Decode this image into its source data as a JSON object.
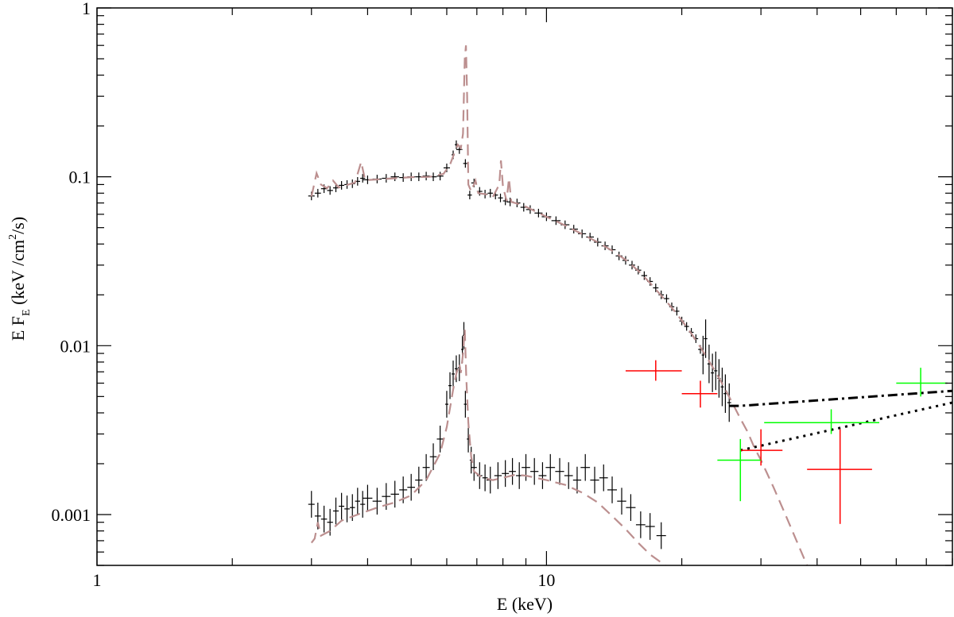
{
  "chart_data": {
    "type": "scatter",
    "xlabel": "E (keV)",
    "ylabel": {
      "pre": "E F",
      "sub": "E",
      "mid": " (keV /cm",
      "sup": "2",
      "post": "/s)"
    },
    "x_scale": "log",
    "y_scale": "log",
    "xlim": [
      1,
      80
    ],
    "ylim": [
      0.0005,
      1
    ],
    "x_ticks": [
      {
        "value": 1,
        "label": "1"
      },
      {
        "value": 10,
        "label": "10"
      }
    ],
    "y_ticks": [
      {
        "value": 0.001,
        "label": "0.001"
      },
      {
        "value": 0.01,
        "label": "0.01"
      },
      {
        "value": 0.1,
        "label": "0.1"
      },
      {
        "value": 1,
        "label": "1"
      }
    ],
    "colors": {
      "data": "#000000",
      "model": "#bc8f8f",
      "red_points": "#ff0000",
      "green_points": "#00ff00",
      "frame": "#000000"
    },
    "series": [
      {
        "kind": "data_upper",
        "points": [
          [
            3.0,
            0.077
          ],
          [
            3.1,
            0.08
          ],
          [
            3.2,
            0.085
          ],
          [
            3.3,
            0.083
          ],
          [
            3.4,
            0.086
          ],
          [
            3.5,
            0.089
          ],
          [
            3.6,
            0.09
          ],
          [
            3.7,
            0.091
          ],
          [
            3.8,
            0.094
          ],
          [
            3.9,
            0.098
          ],
          [
            4.0,
            0.096
          ],
          [
            4.2,
            0.097
          ],
          [
            4.4,
            0.098
          ],
          [
            4.6,
            0.1
          ],
          [
            4.8,
            0.099
          ],
          [
            5.0,
            0.1
          ],
          [
            5.2,
            0.1
          ],
          [
            5.4,
            0.101
          ],
          [
            5.6,
            0.1
          ],
          [
            5.8,
            0.101
          ],
          [
            6.0,
            0.113
          ],
          [
            6.2,
            0.135
          ],
          [
            6.3,
            0.155
          ],
          [
            6.4,
            0.145
          ],
          [
            6.6,
            0.12
          ],
          [
            6.75,
            0.078
          ],
          [
            6.9,
            0.092
          ],
          [
            7.1,
            0.082
          ],
          [
            7.3,
            0.079
          ],
          [
            7.5,
            0.08
          ],
          [
            7.7,
            0.078
          ],
          [
            7.9,
            0.075
          ],
          [
            8.1,
            0.072
          ],
          [
            8.3,
            0.071
          ],
          [
            8.6,
            0.07
          ],
          [
            8.9,
            0.066
          ],
          [
            9.2,
            0.064
          ],
          [
            9.6,
            0.061
          ],
          [
            10.0,
            0.058
          ],
          [
            10.5,
            0.055
          ],
          [
            11.0,
            0.052
          ],
          [
            11.5,
            0.049
          ],
          [
            12.0,
            0.046
          ],
          [
            12.5,
            0.044
          ],
          [
            13.0,
            0.041
          ],
          [
            13.5,
            0.039
          ],
          [
            14.0,
            0.037
          ],
          [
            14.5,
            0.034
          ],
          [
            15.0,
            0.032
          ],
          [
            15.5,
            0.03
          ],
          [
            16.0,
            0.028
          ],
          [
            16.5,
            0.026
          ],
          [
            17.0,
            0.024
          ],
          [
            17.5,
            0.022
          ],
          [
            18.0,
            0.02
          ],
          [
            18.5,
            0.019
          ],
          [
            19.0,
            0.017
          ],
          [
            19.5,
            0.016
          ],
          [
            20.0,
            0.014
          ],
          [
            20.5,
            0.013
          ],
          [
            21.0,
            0.012
          ],
          [
            21.5,
            0.011
          ],
          [
            22.0,
            0.0095
          ]
        ],
        "error_factor": 1.06
      },
      {
        "kind": "data_upper_tail",
        "points": [
          [
            22.3,
            0.0088
          ],
          [
            22.6,
            0.011
          ],
          [
            23.0,
            0.0078
          ],
          [
            23.4,
            0.0069
          ],
          [
            23.8,
            0.0071
          ],
          [
            24.2,
            0.0064
          ],
          [
            24.6,
            0.0057
          ],
          [
            25.0,
            0.0052
          ],
          [
            25.5,
            0.0046
          ]
        ],
        "error_factor": 1.3
      },
      {
        "kind": "data_lower",
        "points": [
          [
            3.0,
            0.00115
          ],
          [
            3.1,
            0.00098
          ],
          [
            3.2,
            0.00094
          ],
          [
            3.3,
            0.0009
          ],
          [
            3.4,
            0.00105
          ],
          [
            3.5,
            0.00112
          ],
          [
            3.6,
            0.00108
          ],
          [
            3.7,
            0.0011
          ],
          [
            3.8,
            0.0012
          ],
          [
            3.9,
            0.00115
          ],
          [
            4.0,
            0.00125
          ],
          [
            4.2,
            0.0012
          ],
          [
            4.4,
            0.00128
          ],
          [
            4.6,
            0.00132
          ],
          [
            4.8,
            0.0014
          ],
          [
            5.0,
            0.00145
          ],
          [
            5.2,
            0.0016
          ],
          [
            5.4,
            0.0019
          ],
          [
            5.6,
            0.0022
          ],
          [
            5.8,
            0.0028
          ],
          [
            6.0,
            0.0045
          ],
          [
            6.1,
            0.0058
          ],
          [
            6.2,
            0.0068
          ],
          [
            6.3,
            0.0073
          ],
          [
            6.4,
            0.0074
          ],
          [
            6.5,
            0.0095
          ],
          [
            6.55,
            0.0115
          ],
          [
            6.6,
            0.0045
          ],
          [
            6.7,
            0.0028
          ],
          [
            6.8,
            0.0021
          ],
          [
            6.9,
            0.0019
          ],
          [
            7.1,
            0.0017
          ],
          [
            7.3,
            0.00165
          ],
          [
            7.5,
            0.0016
          ],
          [
            7.8,
            0.0017
          ],
          [
            8.1,
            0.00175
          ],
          [
            8.4,
            0.0018
          ],
          [
            8.7,
            0.0017
          ],
          [
            9.0,
            0.0019
          ],
          [
            9.4,
            0.0018
          ],
          [
            9.8,
            0.0017
          ],
          [
            10.2,
            0.0019
          ],
          [
            10.7,
            0.0018
          ],
          [
            11.2,
            0.0017
          ],
          [
            11.7,
            0.0016
          ],
          [
            12.2,
            0.0019
          ],
          [
            12.8,
            0.0016
          ],
          [
            13.4,
            0.00165
          ],
          [
            14.0,
            0.0014
          ],
          [
            14.7,
            0.0012
          ],
          [
            15.4,
            0.0011
          ],
          [
            16.2,
            0.00087
          ],
          [
            17.0,
            0.00085
          ],
          [
            18.0,
            0.00075
          ]
        ],
        "error_factor": 1.2
      },
      {
        "kind": "model_upper",
        "points": [
          [
            3.0,
            0.0765
          ],
          [
            3.08,
            0.105
          ],
          [
            3.15,
            0.09
          ],
          [
            3.25,
            0.0855
          ],
          [
            3.35,
            0.095
          ],
          [
            3.45,
            0.0865
          ],
          [
            3.6,
            0.0895
          ],
          [
            3.75,
            0.0925
          ],
          [
            3.87,
            0.1225
          ],
          [
            3.95,
            0.0955
          ],
          [
            4.2,
            0.0965
          ],
          [
            4.6,
            0.098
          ],
          [
            5.0,
            0.0995
          ],
          [
            5.5,
            0.1
          ],
          [
            5.9,
            0.104
          ],
          [
            6.1,
            0.118
          ],
          [
            6.25,
            0.14
          ],
          [
            6.35,
            0.155
          ],
          [
            6.45,
            0.148
          ],
          [
            6.52,
            0.18
          ],
          [
            6.58,
            0.5
          ],
          [
            6.62,
            0.6
          ],
          [
            6.66,
            0.3
          ],
          [
            6.7,
            0.09
          ],
          [
            6.8,
            0.082
          ],
          [
            6.95,
            0.095
          ],
          [
            7.05,
            0.08
          ],
          [
            7.3,
            0.079
          ],
          [
            7.6,
            0.076
          ],
          [
            7.85,
            0.09
          ],
          [
            7.92,
            0.125
          ],
          [
            8.0,
            0.088
          ],
          [
            8.15,
            0.072
          ],
          [
            8.25,
            0.098
          ],
          [
            8.35,
            0.071
          ],
          [
            8.6,
            0.0695
          ],
          [
            9.0,
            0.0665
          ],
          [
            10.0,
            0.058
          ],
          [
            11.0,
            0.0515
          ],
          [
            12.0,
            0.0458
          ],
          [
            13.0,
            0.041
          ],
          [
            14.0,
            0.0365
          ],
          [
            15.0,
            0.0322
          ],
          [
            16.0,
            0.0278
          ],
          [
            17.0,
            0.0235
          ],
          [
            18.0,
            0.0198
          ],
          [
            19.0,
            0.0168
          ],
          [
            20.0,
            0.0141
          ],
          [
            21.0,
            0.0118
          ],
          [
            22.0,
            0.0098
          ],
          [
            23.0,
            0.0081
          ],
          [
            24.0,
            0.0067
          ],
          [
            25.0,
            0.0055
          ],
          [
            26.0,
            0.0045
          ],
          [
            27.0,
            0.0037
          ],
          [
            28.0,
            0.0031
          ],
          [
            29.0,
            0.0025
          ],
          [
            30.0,
            0.0021
          ],
          [
            32.0,
            0.00145
          ],
          [
            34.0,
            0.001
          ],
          [
            36.0,
            0.0007
          ],
          [
            38.0,
            0.0005
          ]
        ]
      },
      {
        "kind": "model_lower",
        "points": [
          [
            3.0,
            0.00068
          ],
          [
            3.05,
            0.00072
          ],
          [
            3.1,
            0.0009
          ],
          [
            3.15,
            0.00075
          ],
          [
            3.3,
            0.0008
          ],
          [
            3.5,
            0.00092
          ],
          [
            3.8,
            0.001
          ],
          [
            4.2,
            0.0011
          ],
          [
            4.6,
            0.00118
          ],
          [
            5.0,
            0.0013
          ],
          [
            5.4,
            0.0016
          ],
          [
            5.8,
            0.0023
          ],
          [
            6.0,
            0.0033
          ],
          [
            6.2,
            0.0055
          ],
          [
            6.3,
            0.0068
          ],
          [
            6.4,
            0.0078
          ],
          [
            6.45,
            0.0069
          ],
          [
            6.52,
            0.009
          ],
          [
            6.58,
            0.0125
          ],
          [
            6.63,
            0.0065
          ],
          [
            6.7,
            0.0035
          ],
          [
            6.8,
            0.0022
          ],
          [
            6.9,
            0.0018
          ],
          [
            7.2,
            0.00165
          ],
          [
            7.6,
            0.0016
          ],
          [
            8.0,
            0.00165
          ],
          [
            8.5,
            0.00172
          ],
          [
            9.0,
            0.0017
          ],
          [
            10.0,
            0.0016
          ],
          [
            11.0,
            0.0015
          ],
          [
            12.0,
            0.00135
          ],
          [
            13.0,
            0.00118
          ],
          [
            14.0,
            0.00098
          ],
          [
            15.0,
            0.00082
          ],
          [
            16.0,
            0.00068
          ],
          [
            17.0,
            0.00058
          ],
          [
            18.0,
            0.00052
          ],
          [
            19.0,
            0.00047
          ]
        ]
      },
      {
        "kind": "powerlaw_dashdot",
        "points": [
          [
            25.5,
            0.0044
          ],
          [
            27.0,
            0.0044
          ],
          [
            80.0,
            0.0054
          ]
        ]
      },
      {
        "kind": "powerlaw_dotted",
        "points": [
          [
            27.0,
            0.0024
          ],
          [
            80.0,
            0.0046
          ]
        ]
      },
      {
        "kind": "red_points",
        "points": [
          {
            "x": 17.5,
            "xlo": 15.0,
            "xhi": 20.0,
            "y": 0.0071,
            "ylo": 0.0062,
            "yhi": 0.0082
          },
          {
            "x": 22.0,
            "xlo": 20.0,
            "xhi": 24.0,
            "y": 0.0052,
            "ylo": 0.0043,
            "yhi": 0.0062
          },
          {
            "x": 30.0,
            "xlo": 27.0,
            "xhi": 33.5,
            "y": 0.0024,
            "ylo": 0.00195,
            "yhi": 0.0032
          },
          {
            "x": 45.0,
            "xlo": 38.0,
            "xhi": 53.0,
            "y": 0.00185,
            "ylo": 0.00088,
            "yhi": 0.0032
          }
        ]
      },
      {
        "kind": "green_points",
        "points": [
          {
            "x": 27.0,
            "xlo": 24.0,
            "xhi": 30.0,
            "y": 0.0021,
            "ylo": 0.0012,
            "yhi": 0.0028
          },
          {
            "x": 43.0,
            "xlo": 30.5,
            "xhi": 55.0,
            "y": 0.0035,
            "ylo": 0.003,
            "yhi": 0.0042
          },
          {
            "x": 68.0,
            "xlo": 60.0,
            "xhi": 78.0,
            "y": 0.006,
            "ylo": 0.005,
            "yhi": 0.0074
          }
        ]
      }
    ]
  }
}
